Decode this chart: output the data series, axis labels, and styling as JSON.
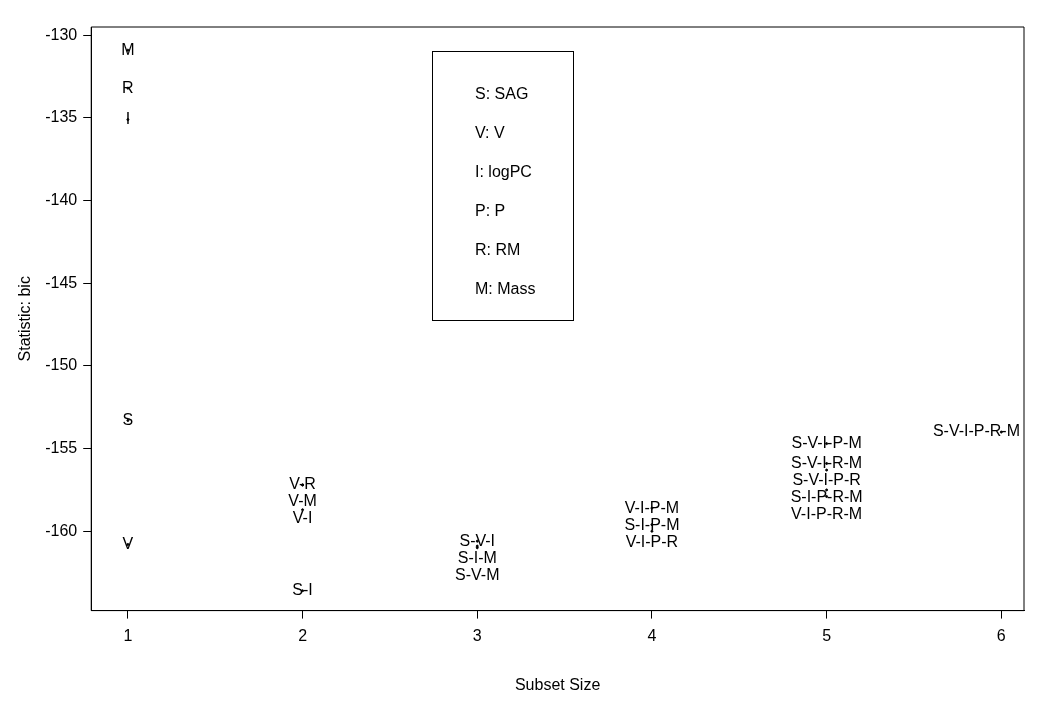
{
  "chart_data": {
    "type": "scatter",
    "xlabel": "Subset Size",
    "ylabel": "Statistic: bic",
    "xlim": [
      0.79,
      6.13
    ],
    "xticks": [
      1,
      2,
      3,
      4,
      5,
      6
    ],
    "ylim": [
      -164.8,
      -129.5
    ],
    "yticks": [
      -160,
      -155,
      -150,
      -145,
      -140,
      -135,
      -130
    ],
    "grid": false,
    "series": [
      {
        "color": "#000000",
        "x": [
          1,
          1,
          1,
          1,
          1,
          2,
          2,
          2,
          2,
          3,
          3,
          3,
          4,
          4,
          4,
          5,
          5,
          5,
          5,
          5,
          6
        ],
        "values": [
          -130.9,
          -133.2,
          -135.1,
          -153.3,
          -160.8,
          -157.2,
          -157.2,
          -158.7,
          -163.6,
          -160.6,
          -160.9,
          -161.0,
          -158.6,
          -159.6,
          -160.0,
          -154.7,
          -155.9,
          -156.3,
          -157.5,
          -157.9,
          -154.0
        ],
        "value_labels": [
          "M",
          "R",
          "I",
          "S",
          "V",
          "V-R",
          "V-M",
          "V-I",
          "S-I",
          "S-V-I",
          "S-I-M",
          "S-V-M",
          "V-I-P-M",
          "S-I-P-M",
          "V-I-P-R",
          "S-V-I-P-M",
          "S-V-I-R-M",
          "S-V-I-P-R",
          "S-I-P-R-M",
          "V-I-P-R-M",
          "S-V-I-P-R-M"
        ]
      }
    ],
    "annotations": [
      "S: SAG",
      "V: V",
      "I: logPC",
      "P: P",
      "R: RM",
      "M: Mass"
    ]
  }
}
